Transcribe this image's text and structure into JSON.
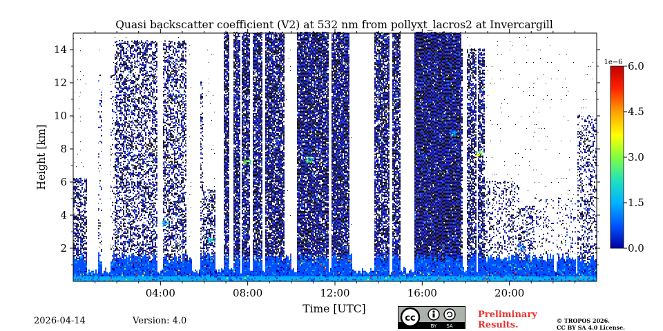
{
  "chart_data": {
    "type": "heatmap",
    "title": "Quasi backscatter coefficient (V2) at 532 nm from pollyxt_lacros2 at Invercargill",
    "xlabel": "Time [UTC]",
    "ylabel": "Height [km]",
    "xlim_hours": [
      0,
      24
    ],
    "ylim_km": [
      0,
      15
    ],
    "x_ticks": [
      {
        "hour": 4,
        "label": "04:00"
      },
      {
        "hour": 8,
        "label": "08:00"
      },
      {
        "hour": 12,
        "label": "12:00"
      },
      {
        "hour": 16,
        "label": "16:00"
      },
      {
        "hour": 20,
        "label": "20:00"
      }
    ],
    "y_ticks": [
      {
        "km": 2,
        "label": "2"
      },
      {
        "km": 4,
        "label": "4"
      },
      {
        "km": 6,
        "label": "6"
      },
      {
        "km": 8,
        "label": "8"
      },
      {
        "km": 10,
        "label": "10"
      },
      {
        "km": 12,
        "label": "12"
      },
      {
        "km": 14,
        "label": "14"
      }
    ],
    "colorbar": {
      "min": 0.0,
      "max": 6.0,
      "scale_label": "1e−6",
      "ticks": [
        {
          "value": 0.0,
          "label": "0.0"
        },
        {
          "value": 1.5,
          "label": "1.5"
        },
        {
          "value": 3.0,
          "label": "3.0"
        },
        {
          "value": 4.5,
          "label": "4.5"
        },
        {
          "value": 6.0,
          "label": "6.0"
        }
      ],
      "colors": [
        "#0000a0",
        "#0050ff",
        "#00b4ff",
        "#20e0c0",
        "#80ff40",
        "#ffff00",
        "#ffa000",
        "#ff2000",
        "#a00000"
      ]
    },
    "profiles": [
      {
        "start": 0.0,
        "end": 0.7,
        "top": 6.2,
        "density": 0.55
      },
      {
        "start": 0.7,
        "end": 1.2,
        "top": 1.3,
        "density": 0.0
      },
      {
        "start": 1.2,
        "end": 1.9,
        "top": 12.5,
        "density": 0.12
      },
      {
        "start": 1.9,
        "end": 5.2,
        "top": 14.5,
        "density": 0.45
      },
      {
        "start": 5.2,
        "end": 5.5,
        "top": 2.0,
        "density": 0.0
      },
      {
        "start": 5.5,
        "end": 6.0,
        "top": 12.0,
        "density": 0.35
      },
      {
        "start": 6.0,
        "end": 6.7,
        "top": 5.5,
        "density": 0.5
      },
      {
        "start": 6.7,
        "end": 9.7,
        "top": 15.0,
        "density": 0.8
      },
      {
        "start": 9.7,
        "end": 10.2,
        "top": 1.5,
        "density": 0.0
      },
      {
        "start": 10.2,
        "end": 12.7,
        "top": 15.0,
        "density": 0.85
      },
      {
        "start": 12.7,
        "end": 13.8,
        "top": 1.2,
        "density": 0.0
      },
      {
        "start": 13.8,
        "end": 15.7,
        "top": 15.0,
        "density": 0.75
      },
      {
        "start": 15.7,
        "end": 17.8,
        "top": 15.0,
        "density": 0.95
      },
      {
        "start": 17.8,
        "end": 18.9,
        "top": 14.0,
        "density": 0.65
      },
      {
        "start": 18.9,
        "end": 20.5,
        "top": 6.0,
        "density": 0.2
      },
      {
        "start": 20.5,
        "end": 21.2,
        "top": 4.5,
        "density": 0.35
      },
      {
        "start": 21.2,
        "end": 23.1,
        "top": 5.0,
        "density": 0.1
      },
      {
        "start": 23.1,
        "end": 24.0,
        "top": 10.0,
        "density": 0.3
      }
    ],
    "gaps": [
      [
        0.6,
        1.1
      ],
      [
        1.3,
        1.7
      ],
      [
        3.8,
        4.1
      ],
      [
        5.4,
        5.8
      ],
      [
        6.5,
        6.9
      ],
      [
        7.15,
        7.3
      ],
      [
        7.6,
        7.7
      ],
      [
        8.05,
        8.2
      ],
      [
        8.65,
        8.8
      ],
      [
        9.95,
        10.25
      ],
      [
        11.7,
        11.8
      ],
      [
        12.75,
        13.8
      ],
      [
        14.5,
        14.6
      ],
      [
        14.95,
        15.6
      ],
      [
        17.85,
        18.0
      ],
      [
        18.45,
        18.55
      ],
      [
        22.0,
        22.15
      ],
      [
        23.0,
        23.1
      ]
    ],
    "aerosol_layers": [
      {
        "hour": 6.3,
        "km": 2.5,
        "value": 2.5
      },
      {
        "hour": 7.95,
        "km": 7.3,
        "value": 3.0
      },
      {
        "hour": 10.8,
        "km": 7.4,
        "value": 2.5
      },
      {
        "hour": 17.4,
        "km": 9.0,
        "value": 1.8
      },
      {
        "hour": 18.6,
        "km": 7.8,
        "value": 3.2
      },
      {
        "hour": 4.2,
        "km": 3.5,
        "value": 2.0
      },
      {
        "hour": 20.5,
        "km": 2.1,
        "value": 1.5
      }
    ]
  },
  "footer": {
    "date": "2026-04-14",
    "version": "Version: 4.0",
    "preliminary_line1": "Preliminary",
    "preliminary_line2": "Results.",
    "copyright_line1": "© TROPOS 2026.",
    "copyright_line2": "CC BY SA 4.0 License.",
    "license_by": "BY",
    "license_sa": "SA",
    "license_cc": "cc"
  }
}
